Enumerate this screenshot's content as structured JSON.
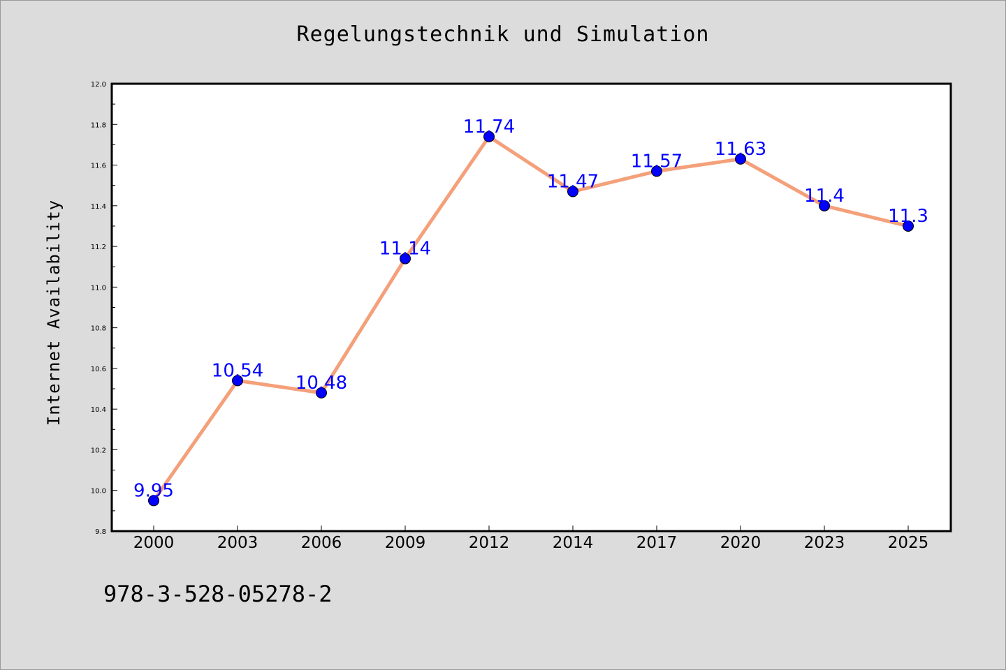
{
  "title": "Regelungstechnik und Simulation",
  "footer": "978-3-528-05278-2",
  "colors": {
    "line": "#f4a07a",
    "marker": "#0000ff",
    "label": "#0000ff",
    "plot_bg": "#ffffff",
    "page_bg": "#dcdcdc"
  },
  "chart_data": {
    "type": "line",
    "title": "Regelungstechnik und Simulation",
    "xlabel": "",
    "ylabel": "Internet Availability",
    "categories": [
      "2000",
      "2003",
      "2006",
      "2009",
      "2012",
      "2014",
      "2017",
      "2020",
      "2023",
      "2025"
    ],
    "series": [
      {
        "values": [
          9.95,
          10.54,
          10.48,
          11.14,
          11.74,
          11.47,
          11.57,
          11.63,
          11.4,
          11.3
        ]
      }
    ],
    "ylim": [
      9.8,
      12.0
    ],
    "yticks": [
      "9.8",
      "10.0",
      "10.2",
      "10.4",
      "10.6",
      "10.8",
      "11.0",
      "11.2",
      "11.4",
      "11.6",
      "11.8",
      "12.0"
    ],
    "data_labels": [
      "9.95",
      "10.54",
      "10.48",
      "11.14",
      "11.74",
      "11.47",
      "11.57",
      "11.63",
      "11.4",
      "11.3"
    ],
    "grid": false,
    "legend": "none"
  }
}
